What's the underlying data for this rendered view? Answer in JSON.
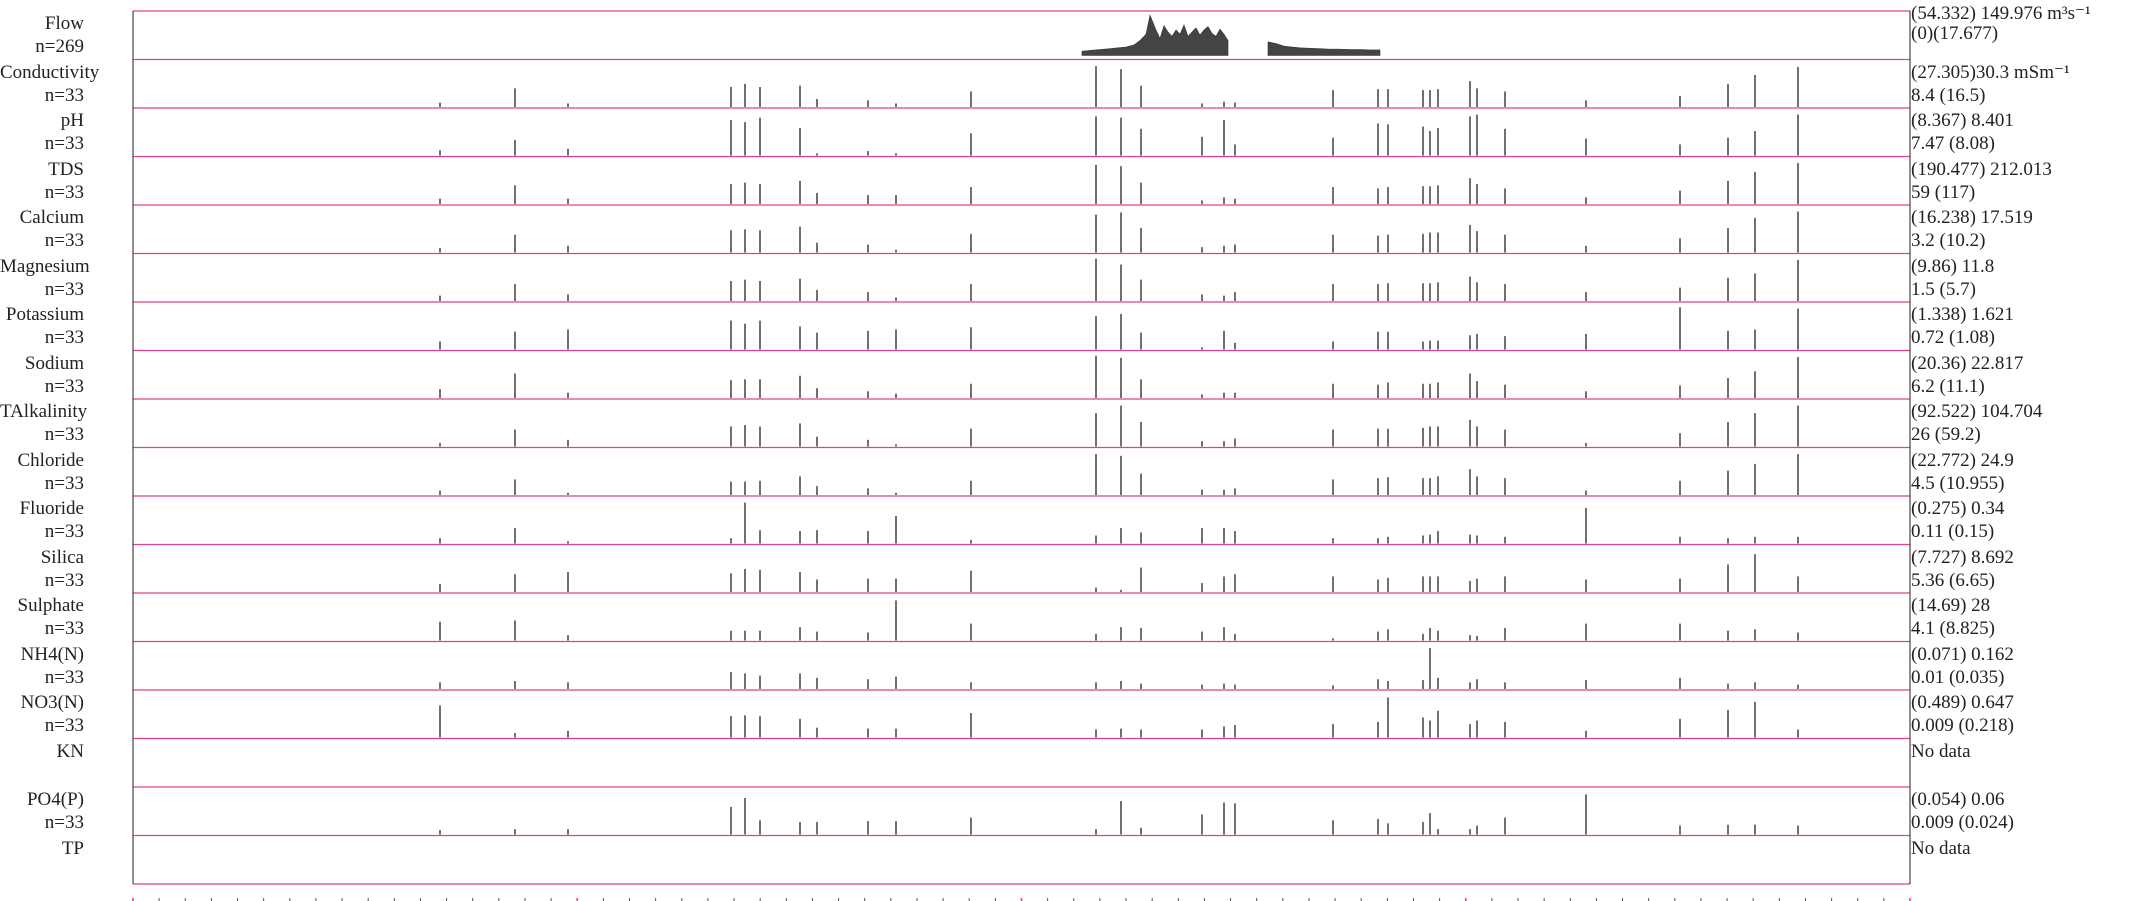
{
  "chart_data": {
    "type": "line",
    "colors": {
      "panel_border": "#e0408c",
      "mark": "#333333",
      "axis": "#e0408c"
    },
    "panels": [
      {
        "name": "Flow",
        "n": "n=269",
        "stat_top": "(54.332) 149.976 m³s⁻¹",
        "stat_bottom": "(0)(17.677)",
        "kind": "flow",
        "segments": [
          {
            "x": [
              1082,
              1090,
              1100,
              1110,
              1118,
              1126,
              1134,
              1140,
              1146,
              1150,
              1156,
              1160,
              1164,
              1168,
              1172,
              1176,
              1180,
              1184,
              1188,
              1192,
              1196,
              1200,
              1204,
              1208,
              1212,
              1216,
              1220,
              1224,
              1228
            ],
            "y": [
              0.1,
              0.12,
              0.14,
              0.16,
              0.18,
              0.2,
              0.25,
              0.35,
              0.5,
              0.95,
              0.6,
              0.4,
              0.7,
              0.55,
              0.45,
              0.6,
              0.5,
              0.72,
              0.45,
              0.55,
              0.65,
              0.48,
              0.6,
              0.68,
              0.52,
              0.45,
              0.62,
              0.5,
              0.35
            ]
          },
          {
            "x": [
              1268,
              1276,
              1284,
              1292,
              1300,
              1310,
              1320,
              1330,
              1340,
              1350,
              1360,
              1370,
              1380
            ],
            "y": [
              0.32,
              0.28,
              0.22,
              0.2,
              0.18,
              0.17,
              0.16,
              0.15,
              0.15,
              0.14,
              0.14,
              0.13,
              0.13
            ]
          }
        ]
      },
      {
        "name": "Conductivity",
        "n": "n=33",
        "stat_top": "(27.305)30.3 mSm⁻¹",
        "stat_bottom": "8.4 (16.5)",
        "kind": "bars",
        "values": [
          0.1,
          0.42,
          0.08,
          0.45,
          0.52,
          0.45,
          0.48,
          0.18,
          0.15,
          0.08,
          0.35,
          0.92,
          0.85,
          0.48,
          0.08,
          0.12,
          0.1,
          0.38,
          0.4,
          0.4,
          0.38,
          0.38,
          0.4,
          0.58,
          0.42,
          0.35,
          0.15,
          0.25,
          0.52,
          0.72,
          0.9
        ]
      },
      {
        "name": "pH",
        "n": "n=33",
        "stat_top": "(8.367) 8.401",
        "stat_bottom": "7.47 (8.08)",
        "kind": "bars",
        "values": [
          0.12,
          0.35,
          0.15,
          0.8,
          0.75,
          0.85,
          0.62,
          0.05,
          0.1,
          0.05,
          0.5,
          0.88,
          0.85,
          0.6,
          0.42,
          0.8,
          0.25,
          0.4,
          0.72,
          0.7,
          0.65,
          0.55,
          0.62,
          0.88,
          0.92,
          0.6,
          0.38,
          0.25,
          0.4,
          0.55,
          0.92
        ]
      },
      {
        "name": "TDS",
        "n": "n=33",
        "stat_top": "(190.477) 212.013",
        "stat_bottom": "59 (117)",
        "kind": "bars",
        "values": [
          0.12,
          0.42,
          0.12,
          0.45,
          0.48,
          0.45,
          0.52,
          0.25,
          0.2,
          0.2,
          0.38,
          0.88,
          0.85,
          0.48,
          0.08,
          0.15,
          0.12,
          0.38,
          0.35,
          0.38,
          0.4,
          0.4,
          0.42,
          0.58,
          0.45,
          0.35,
          0.15,
          0.3,
          0.52,
          0.72,
          0.92
        ]
      },
      {
        "name": "Calcium",
        "n": "n=33",
        "stat_top": "(16.238) 17.519",
        "stat_bottom": "3.2 (10.2)",
        "kind": "bars",
        "values": [
          0.1,
          0.4,
          0.15,
          0.5,
          0.52,
          0.5,
          0.58,
          0.22,
          0.18,
          0.06,
          0.42,
          0.85,
          0.9,
          0.55,
          0.12,
          0.15,
          0.18,
          0.4,
          0.38,
          0.4,
          0.42,
          0.45,
          0.45,
          0.62,
          0.48,
          0.4,
          0.15,
          0.32,
          0.55,
          0.78,
          0.92
        ]
      },
      {
        "name": "Magnesium",
        "n": "n=33",
        "stat_top": "(9.86) 11.8",
        "stat_bottom": "1.5 (5.7)",
        "kind": "bars",
        "values": [
          0.12,
          0.38,
          0.15,
          0.45,
          0.48,
          0.45,
          0.5,
          0.25,
          0.2,
          0.08,
          0.38,
          0.95,
          0.82,
          0.48,
          0.15,
          0.12,
          0.2,
          0.38,
          0.38,
          0.4,
          0.4,
          0.4,
          0.42,
          0.55,
          0.42,
          0.38,
          0.2,
          0.3,
          0.52,
          0.62,
          0.92
        ]
      },
      {
        "name": "Potassium",
        "n": "n=33",
        "stat_top": "(1.338) 1.621",
        "stat_bottom": "0.72 (1.08)",
        "kind": "bars",
        "values": [
          0.18,
          0.4,
          0.45,
          0.65,
          0.58,
          0.65,
          0.52,
          0.38,
          0.42,
          0.45,
          0.5,
          0.75,
          0.8,
          0.38,
          0.05,
          0.42,
          0.15,
          0.18,
          0.4,
          0.4,
          0.18,
          0.2,
          0.2,
          0.32,
          0.35,
          0.3,
          0.35,
          0.95,
          0.42,
          0.45,
          0.92
        ]
      },
      {
        "name": "Sodium",
        "n": "n=33",
        "stat_top": "(20.36) 22.817",
        "stat_bottom": "6.2 (11.1)",
        "kind": "bars",
        "values": [
          0.2,
          0.55,
          0.12,
          0.4,
          0.42,
          0.42,
          0.5,
          0.22,
          0.15,
          0.1,
          0.32,
          0.95,
          0.9,
          0.42,
          0.08,
          0.12,
          0.12,
          0.32,
          0.3,
          0.35,
          0.32,
          0.32,
          0.35,
          0.55,
          0.38,
          0.3,
          0.15,
          0.28,
          0.45,
          0.6,
          0.92
        ]
      },
      {
        "name": "TAlkalinity",
        "n": "n=33",
        "stat_top": "(92.522) 104.704",
        "stat_bottom": "26 (59.2)",
        "kind": "bars",
        "values": [
          0.08,
          0.38,
          0.15,
          0.45,
          0.48,
          0.45,
          0.52,
          0.22,
          0.15,
          0.05,
          0.4,
          0.75,
          0.92,
          0.55,
          0.12,
          0.12,
          0.18,
          0.38,
          0.4,
          0.4,
          0.42,
          0.45,
          0.45,
          0.6,
          0.45,
          0.38,
          0.08,
          0.3,
          0.55,
          0.75,
          0.92
        ]
      },
      {
        "name": "Chloride",
        "n": "n=33",
        "stat_top": "(22.772) 24.9",
        "stat_bottom": "4.5 (10.955)",
        "kind": "bars",
        "values": [
          0.1,
          0.35,
          0.05,
          0.3,
          0.3,
          0.32,
          0.42,
          0.2,
          0.15,
          0.05,
          0.32,
          0.92,
          0.88,
          0.48,
          0.12,
          0.12,
          0.15,
          0.35,
          0.38,
          0.4,
          0.38,
          0.38,
          0.42,
          0.58,
          0.42,
          0.38,
          0.1,
          0.32,
          0.55,
          0.7,
          0.92
        ]
      },
      {
        "name": "Fluoride",
        "n": "n=33",
        "stat_top": "(0.275) 0.34",
        "stat_bottom": "0.11 (0.15)",
        "kind": "bars",
        "values": [
          0.12,
          0.35,
          0.05,
          0.12,
          0.92,
          0.3,
          0.28,
          0.3,
          0.28,
          0.62,
          0.08,
          0.18,
          0.35,
          0.25,
          0.35,
          0.35,
          0.28,
          0.12,
          0.12,
          0.15,
          0.18,
          0.2,
          0.28,
          0.2,
          0.18,
          0.15,
          0.8,
          0.15,
          0.12,
          0.15,
          0.15
        ]
      },
      {
        "name": "Silica",
        "n": "n=33",
        "stat_top": "(7.727) 8.692",
        "stat_bottom": "5.36 (6.65)",
        "kind": "bars",
        "values": [
          0.18,
          0.4,
          0.45,
          0.42,
          0.52,
          0.5,
          0.45,
          0.28,
          0.3,
          0.3,
          0.48,
          0.1,
          0.05,
          0.55,
          0.2,
          0.35,
          0.4,
          0.35,
          0.28,
          0.32,
          0.35,
          0.35,
          0.35,
          0.25,
          0.3,
          0.35,
          0.28,
          0.3,
          0.62,
          0.85,
          0.35
        ]
      },
      {
        "name": "Sulphate",
        "n": "n=33",
        "stat_top": "(14.69) 28",
        "stat_bottom": "4.1 (8.825)",
        "kind": "bars",
        "values": [
          0.42,
          0.45,
          0.12,
          0.22,
          0.22,
          0.22,
          0.3,
          0.2,
          0.18,
          0.9,
          0.38,
          0.15,
          0.3,
          0.28,
          0.2,
          0.3,
          0.15,
          0.05,
          0.2,
          0.25,
          0.15,
          0.28,
          0.22,
          0.12,
          0.1,
          0.28,
          0.38,
          0.38,
          0.22,
          0.25,
          0.18
        ]
      },
      {
        "name": "NH4(N)",
        "n": "n=33",
        "stat_top": "(0.071) 0.162",
        "stat_bottom": "0.01 (0.035)",
        "kind": "bars",
        "values": [
          0.15,
          0.18,
          0.15,
          0.38,
          0.35,
          0.3,
          0.35,
          0.25,
          0.22,
          0.28,
          0.15,
          0.15,
          0.18,
          0.12,
          0.1,
          0.12,
          0.1,
          0.08,
          0.22,
          0.18,
          0.2,
          0.92,
          0.25,
          0.15,
          0.22,
          0.15,
          0.2,
          0.25,
          0.12,
          0.15,
          0.1
        ]
      },
      {
        "name": "NO3(N)",
        "n": "n=33",
        "stat_top": "(0.489) 0.647",
        "stat_bottom": "0.009 (0.218)",
        "kind": "bars",
        "values": [
          0.72,
          0.1,
          0.15,
          0.48,
          0.5,
          0.48,
          0.42,
          0.22,
          0.2,
          0.2,
          0.55,
          0.18,
          0.2,
          0.18,
          0.18,
          0.25,
          0.28,
          0.3,
          0.35,
          0.9,
          0.45,
          0.38,
          0.6,
          0.3,
          0.38,
          0.35,
          0.15,
          0.42,
          0.62,
          0.8,
          0.18
        ]
      },
      {
        "name": "KN",
        "n": "",
        "stat_top": "No data",
        "stat_bottom": "",
        "kind": "empty",
        "values": []
      },
      {
        "name": "PO4(P)",
        "n": "n=33",
        "stat_top": "(0.054) 0.06",
        "stat_bottom": "0.009 (0.024)",
        "kind": "bars",
        "values": [
          0.1,
          0.12,
          0.12,
          0.62,
          0.82,
          0.32,
          0.28,
          0.28,
          0.3,
          0.3,
          0.38,
          0.12,
          0.75,
          0.15,
          0.45,
          0.72,
          0.7,
          0.32,
          0.35,
          0.25,
          0.28,
          0.48,
          0.12,
          0.12,
          0.2,
          0.38,
          0.9,
          0.2,
          0.22,
          0.22,
          0.2
        ]
      },
      {
        "name": "TP",
        "n": "",
        "stat_top": "No data",
        "stat_bottom": "",
        "kind": "empty",
        "values": []
      }
    ]
  }
}
